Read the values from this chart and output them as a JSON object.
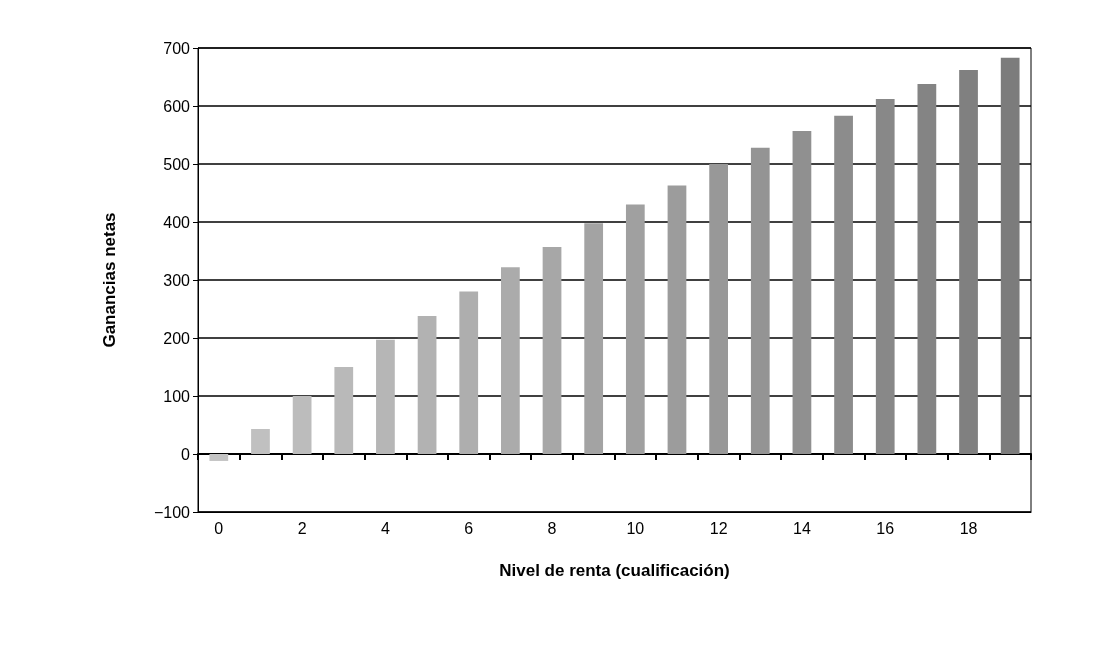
{
  "chart_data": {
    "type": "bar",
    "xlabel": "Nivel de renta (cualificación)",
    "ylabel": "Ganancias netas",
    "categories": [
      "0",
      null,
      "2",
      null,
      "4",
      null,
      "6",
      null,
      "8",
      null,
      "10",
      null,
      "12",
      null,
      "14",
      null,
      "16",
      null,
      "18",
      null
    ],
    "values": [
      -12,
      43,
      100,
      150,
      197,
      238,
      280,
      322,
      357,
      398,
      430,
      463,
      500,
      528,
      557,
      583,
      612,
      638,
      662,
      683
    ],
    "colors": [
      "#c4c4c4",
      "#c0c0c0",
      "#bcbcbc",
      "#b9b9b9",
      "#b6b6b6",
      "#b2b2b2",
      "#aeaeae",
      "#ababab",
      "#a7a7a7",
      "#a3a3a3",
      "#a0a0a0",
      "#9c9c9c",
      "#989898",
      "#949494",
      "#909090",
      "#8c8c8c",
      "#888888",
      "#848484",
      "#808080",
      "#7c7c7c"
    ],
    "ylim": [
      -100,
      700
    ],
    "yticks": [
      -100,
      0,
      100,
      200,
      300,
      400,
      500,
      600,
      700
    ],
    "grid": "y"
  }
}
